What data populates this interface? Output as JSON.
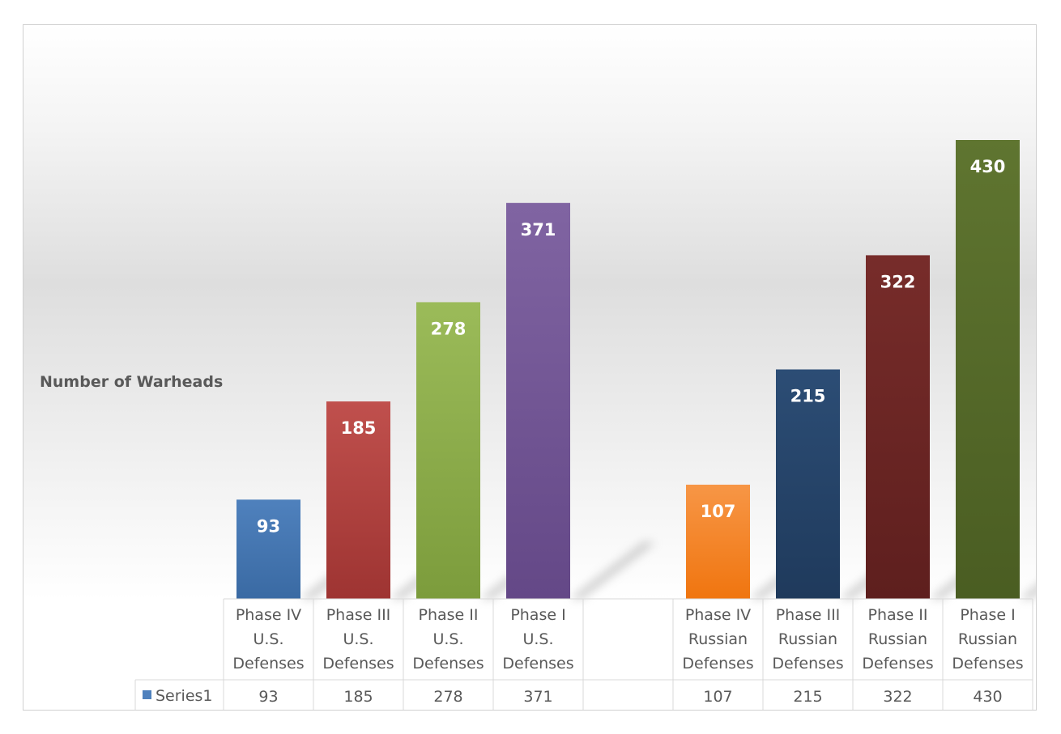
{
  "chart_data": {
    "type": "bar",
    "ylabel": "Number of Warheads",
    "categories": [
      [
        "Phase IV",
        "U.S.",
        "Defenses"
      ],
      [
        "Phase III",
        "U.S.",
        "Defenses"
      ],
      [
        "Phase II",
        "U.S.",
        "Defenses"
      ],
      [
        "Phase I",
        "U.S.",
        "Defenses"
      ],
      [
        "",
        "",
        ""
      ],
      [
        "Phase IV",
        "Russian",
        "Defenses"
      ],
      [
        "Phase III",
        "Russian",
        "Defenses"
      ],
      [
        "Phase II",
        "Russian",
        "Defenses"
      ],
      [
        "Phase I",
        "Russian",
        "Defenses"
      ]
    ],
    "series": [
      {
        "name": "Series1",
        "values": [
          93,
          185,
          278,
          371,
          null,
          107,
          215,
          322,
          430
        ]
      }
    ],
    "bar_colors": [
      [
        "#4f81bd",
        "#3a6aa3"
      ],
      [
        "#c0504d",
        "#9e3432"
      ],
      [
        "#9bbb59",
        "#7c9c3c"
      ],
      [
        "#8064a2",
        "#644887"
      ],
      [
        "#ffffff",
        "#ffffff"
      ],
      [
        "#f79646",
        "#f0750f"
      ],
      [
        "#2c4d75",
        "#1f3a5c"
      ],
      [
        "#772c2a",
        "#5e1f1e"
      ],
      [
        "#5f7530",
        "#4a5d22"
      ]
    ],
    "legend_swatch_color": "#4f81bd",
    "ylim": [
      0,
      430
    ],
    "data_table": true
  }
}
